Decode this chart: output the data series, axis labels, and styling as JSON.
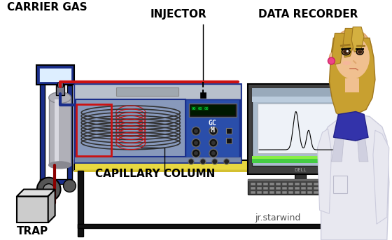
{
  "bg_color": "#ffffff",
  "labels": {
    "carrier_gas": "CARRIER GAS",
    "injector": "INJECTOR",
    "data_recorder": "DATA RECORDER",
    "capillary_column": "CAPILLARY COLUMN",
    "trap": "TRAP",
    "watermark": "jr.starwind"
  },
  "colors": {
    "blue_cart": "#1a2e8a",
    "blue_machine": "#2a5aaa",
    "blue_machine2": "#3366cc",
    "blue_dark": "#1a2e8a",
    "blue_ctrl": "#2a4eaa",
    "red_tube": "#cc1111",
    "dark_red": "#8b0000",
    "gray_cyl": "#b0b0b8",
    "gray_cyl2": "#888890",
    "gray_top": "#b8c0cc",
    "yellow_desk": "#e8d840",
    "yellow_desk2": "#d4c030",
    "black": "#000000",
    "white": "#ffffff",
    "monitor_dark": "#222222",
    "monitor_frame": "#444444",
    "screen_bg": "#aabbcc",
    "screen_white": "#eef2f8",
    "screen_blue_bar": "#4466bb",
    "screen_green": "#44cc44",
    "screen_green2": "#22aa22",
    "keyboard_dark": "#444444",
    "keyboard_med": "#666666",
    "coil_dark": "#333333",
    "table_leg": "#111111",
    "trap_gray": "#cccccc",
    "trap_gray2": "#aaaaaa",
    "anime_hair": "#c8a030",
    "anime_hair2": "#a07820",
    "anime_skin": "#f0c090",
    "anime_skin2": "#e0a870",
    "anime_coat": "#e8e8f0",
    "anime_coat2": "#d0d0e0",
    "anime_collar": "#3333aa",
    "anime_collar2": "#2222880",
    "anime_eye": "#5c4020",
    "pink_earring": "#ee4488",
    "mouse_gray": "#cccccc"
  },
  "figsize": [
    5.6,
    3.43
  ],
  "dpi": 100
}
